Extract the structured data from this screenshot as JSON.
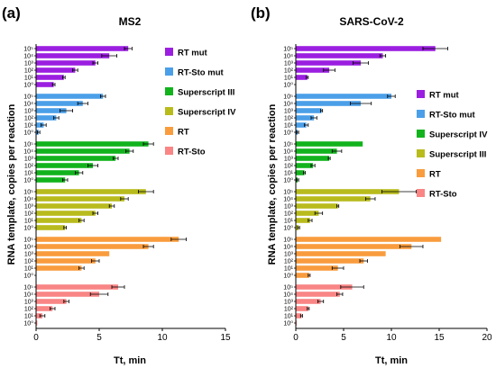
{
  "panels": [
    {
      "letter": "(a)",
      "title": "MS2",
      "xlabel": "Tt, min",
      "ylabel": "RNA template, copies per reaction",
      "xlim": [
        0,
        15
      ],
      "xticks": [
        0,
        5,
        10,
        15
      ],
      "levels": [
        "10⁵",
        "10⁴",
        "10³",
        "10²",
        "10¹",
        "10⁰"
      ],
      "legend": [
        "RT mut",
        "RT-Sto mut",
        "Superscript III",
        "Superscript IV",
        "RT",
        "RT-Sto"
      ],
      "groups": [
        {
          "name": "RT mut",
          "color": "#9b1fe0",
          "values": [
            7.3,
            5.8,
            4.7,
            3.1,
            2.2,
            1.4
          ],
          "errors": [
            0.3,
            0.6,
            0.2,
            0.2,
            0.1,
            0.1
          ]
        },
        {
          "name": "RT-Sto mut",
          "color": "#4b9fe8",
          "values": [
            5.3,
            3.7,
            2.4,
            1.6,
            0.6,
            0.2
          ],
          "errors": [
            0.2,
            0.4,
            0.5,
            0.2,
            0.2,
            0.1
          ]
        },
        {
          "name": "Superscript III",
          "color": "#12b31d",
          "values": [
            8.9,
            7.4,
            6.3,
            4.5,
            3.4,
            2.3
          ],
          "errors": [
            0.4,
            0.3,
            0.2,
            0.4,
            0.3,
            0.2
          ]
        },
        {
          "name": "Superscript IV",
          "color": "#b8bb1c",
          "values": [
            8.7,
            7.0,
            6.0,
            4.7,
            3.6,
            2.3
          ],
          "errors": [
            0.6,
            0.3,
            0.2,
            0.2,
            0.2,
            0.1
          ]
        },
        {
          "name": "RT",
          "color": "#f99c3e",
          "values": [
            11.3,
            8.9,
            5.8,
            4.7,
            3.6,
            null
          ],
          "errors": [
            0.6,
            0.4,
            0.0,
            0.3,
            0.2,
            0
          ]
        },
        {
          "name": "RT-Sto",
          "color": "#f98585",
          "values": [
            6.5,
            5.0,
            2.4,
            1.3,
            0.5,
            0.1
          ],
          "errors": [
            0.5,
            0.7,
            0.2,
            0.2,
            0.2,
            0.0
          ]
        }
      ]
    },
    {
      "letter": "(b)",
      "title": "SARS-CoV-2",
      "xlabel": "Tt, min",
      "ylabel": "RNA template, copies per reaction",
      "xlim": [
        0,
        20
      ],
      "xticks": [
        0,
        5,
        10,
        15,
        20
      ],
      "levels": [
        "10⁵",
        "10⁴",
        "10³",
        "10²",
        "10¹",
        "10⁰"
      ],
      "legend": [
        "RT mut",
        "RT-Sto mut",
        "Superscript IV",
        "Superscript III",
        "RT",
        "RT-Sto"
      ],
      "groups": [
        {
          "name": "RT mut",
          "color": "#9b1fe0",
          "values": [
            14.6,
            9.1,
            6.8,
            3.5,
            1.2,
            null
          ],
          "errors": [
            1.3,
            0.3,
            0.8,
            0.6,
            0.1,
            0
          ]
        },
        {
          "name": "RT-Sto mut",
          "color": "#4b9fe8",
          "values": [
            10.0,
            6.8,
            2.7,
            1.9,
            1.1,
            0.2
          ],
          "errors": [
            0.4,
            1.1,
            0.1,
            0.3,
            0.2,
            0.1
          ]
        },
        {
          "name": "Superscript IV",
          "color": "#12b31d",
          "values": [
            7.0,
            4.3,
            3.5,
            1.8,
            0.9,
            0.2
          ],
          "errors": [
            0,
            0.5,
            0.1,
            0.2,
            0.1,
            0.1
          ]
        },
        {
          "name": "Superscript III",
          "color": "#b8bb1c",
          "values": [
            10.8,
            7.8,
            4.4,
            2.4,
            1.5,
            0.3
          ],
          "errors": [
            1.8,
            0.5,
            0.1,
            0.4,
            0.2,
            0.1
          ]
        },
        {
          "name": "RT",
          "color": "#f99c3e",
          "values": [
            15.2,
            12.1,
            9.4,
            7.1,
            4.4,
            1.4
          ],
          "errors": [
            0,
            1.2,
            0.0,
            0.4,
            0.6,
            0.1
          ]
        },
        {
          "name": "RT-Sto",
          "color": "#f98585",
          "values": [
            5.9,
            4.6,
            2.6,
            1.3,
            0.6,
            0.1
          ],
          "errors": [
            1.2,
            0.3,
            0.3,
            0.1,
            0.1,
            0.0
          ]
        }
      ]
    }
  ],
  "chart_data": [
    {
      "type": "bar",
      "orientation": "horizontal",
      "title": "MS2",
      "xlabel": "Tt, min",
      "ylabel": "RNA template, copies per reaction",
      "xlim": [
        0,
        15
      ],
      "categories": [
        "10⁵",
        "10⁴",
        "10³",
        "10²",
        "10¹",
        "10⁰"
      ],
      "legend_position": "right",
      "series": [
        {
          "name": "RT mut",
          "values": [
            7.3,
            5.8,
            4.7,
            3.1,
            2.2,
            1.4
          ]
        },
        {
          "name": "RT-Sto mut",
          "values": [
            5.3,
            3.7,
            2.4,
            1.6,
            0.6,
            0.2
          ]
        },
        {
          "name": "Superscript III",
          "values": [
            8.9,
            7.4,
            6.3,
            4.5,
            3.4,
            2.3
          ]
        },
        {
          "name": "Superscript IV",
          "values": [
            8.7,
            7.0,
            6.0,
            4.7,
            3.6,
            2.3
          ]
        },
        {
          "name": "RT",
          "values": [
            11.3,
            8.9,
            5.8,
            4.7,
            3.6,
            null
          ]
        },
        {
          "name": "RT-Sto",
          "values": [
            6.5,
            5.0,
            2.4,
            1.3,
            0.5,
            0.1
          ]
        }
      ]
    },
    {
      "type": "bar",
      "orientation": "horizontal",
      "title": "SARS-CoV-2",
      "xlabel": "Tt, min",
      "ylabel": "RNA template, copies per reaction",
      "xlim": [
        0,
        20
      ],
      "categories": [
        "10⁵",
        "10⁴",
        "10³",
        "10²",
        "10¹",
        "10⁰"
      ],
      "legend_position": "right",
      "series": [
        {
          "name": "RT mut",
          "values": [
            14.6,
            9.1,
            6.8,
            3.5,
            1.2,
            null
          ]
        },
        {
          "name": "RT-Sto mut",
          "values": [
            10.0,
            6.8,
            2.7,
            1.9,
            1.1,
            0.2
          ]
        },
        {
          "name": "Superscript IV",
          "values": [
            7.0,
            4.3,
            3.5,
            1.8,
            0.9,
            0.2
          ]
        },
        {
          "name": "Superscript III",
          "values": [
            10.8,
            7.8,
            4.4,
            2.4,
            1.5,
            0.3
          ]
        },
        {
          "name": "RT",
          "values": [
            15.2,
            12.1,
            9.4,
            7.1,
            4.4,
            1.4
          ]
        },
        {
          "name": "RT-Sto",
          "values": [
            5.9,
            4.6,
            2.6,
            1.3,
            0.6,
            0.1
          ]
        }
      ]
    }
  ]
}
